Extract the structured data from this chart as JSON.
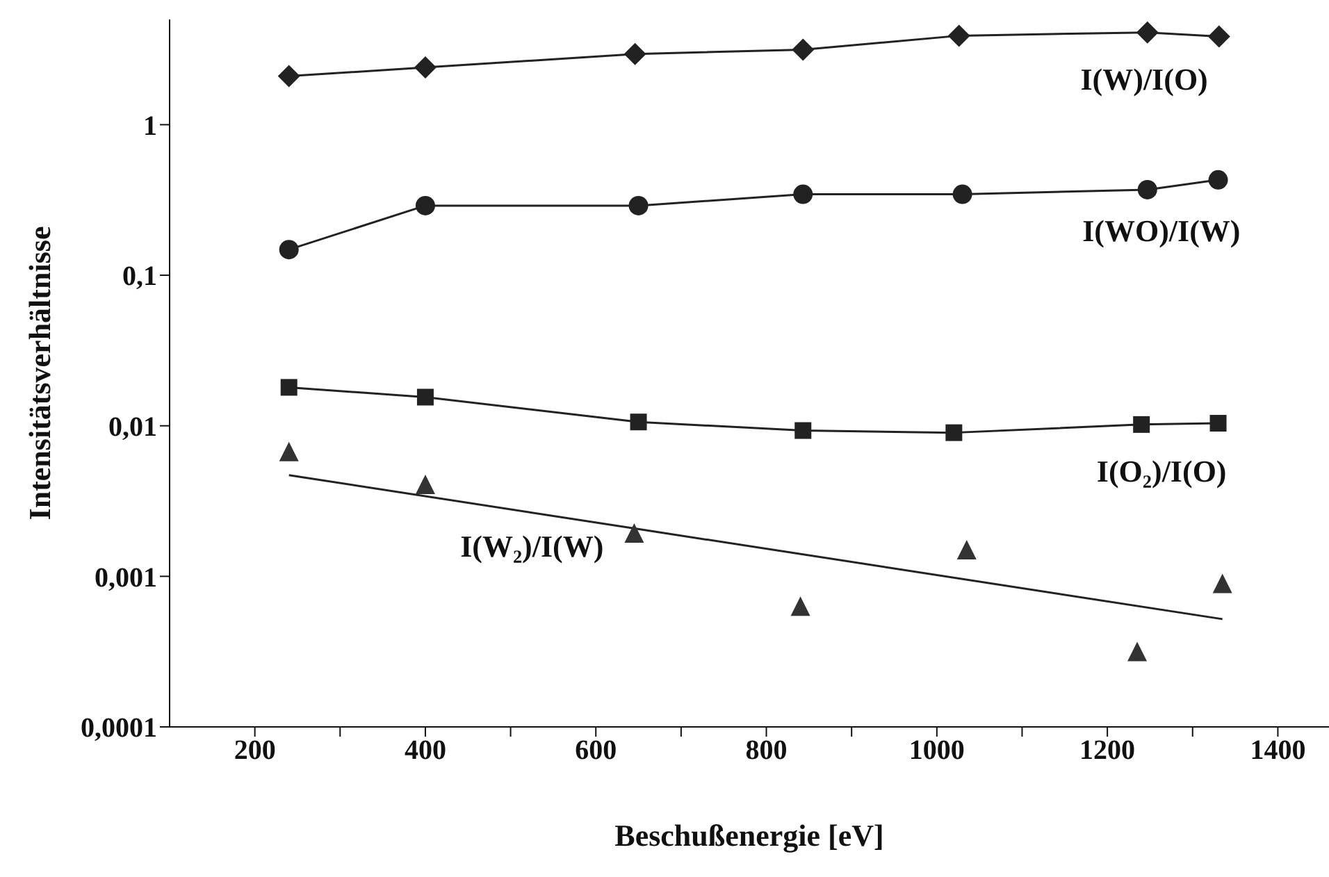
{
  "chart_data": {
    "type": "line",
    "xlabel": "Beschußenergie [eV]",
    "ylabel": "Intensitätsverhältnisse",
    "log": "y",
    "grid": false,
    "xlim": [
      100,
      1460
    ],
    "xticks": [
      200,
      {
        "value": 300,
        "label": null
      },
      400,
      {
        "value": 500,
        "label": null
      },
      600,
      {
        "value": 700,
        "label": null
      },
      800,
      {
        "value": 900,
        "label": null
      },
      1000,
      {
        "value": 1100,
        "label": null
      },
      1200,
      {
        "value": 1300,
        "label": null
      },
      1400
    ],
    "ylim": [
      0.0001,
      5
    ],
    "yticks": [
      {
        "value": 0.0001,
        "label": "0,0001"
      },
      {
        "value": 0.001,
        "label": "0,001"
      },
      {
        "value": 0.01,
        "label": "0,01"
      },
      {
        "value": 0.1,
        "label": "0,1"
      },
      1
    ],
    "series": [
      {
        "name": "I(W)/I(O)",
        "color": "#222222",
        "marker": "diamond",
        "x": [
          240,
          400,
          646,
          843,
          1026,
          1247,
          1331
        ],
        "values": [
          2.1,
          2.4,
          2.95,
          3.15,
          3.9,
          4.1,
          3.85
        ]
      },
      {
        "name": "I(WO)/I(W)",
        "color": "#222222",
        "marker": "circle",
        "x": [
          240,
          400,
          650,
          843,
          1030,
          1247,
          1330
        ],
        "values": [
          0.148,
          0.29,
          0.29,
          0.345,
          0.345,
          0.37,
          0.43
        ]
      },
      {
        "name": "I(O₂)/I(O)",
        "color": "#222222",
        "marker": "square",
        "x": [
          240,
          400,
          650,
          843,
          1020,
          1240,
          1330
        ],
        "values": [
          0.018,
          0.0155,
          0.0106,
          0.0093,
          0.009,
          0.0102,
          0.0104
        ]
      },
      {
        "name": "I(W₂)/I(W)",
        "type": "scatter",
        "color": "#333333",
        "marker": "triangle",
        "x": [
          240,
          400,
          645,
          840,
          1035,
          1235,
          1335
        ],
        "values": [
          0.0066,
          0.004,
          0.0019,
          0.00062,
          0.00147,
          0.00031,
          0.00088
        ]
      },
      {
        "color": "#222222",
        "marker": "none",
        "x": [
          240,
          1335
        ],
        "values": [
          0.0047,
          0.00052
        ]
      }
    ]
  }
}
